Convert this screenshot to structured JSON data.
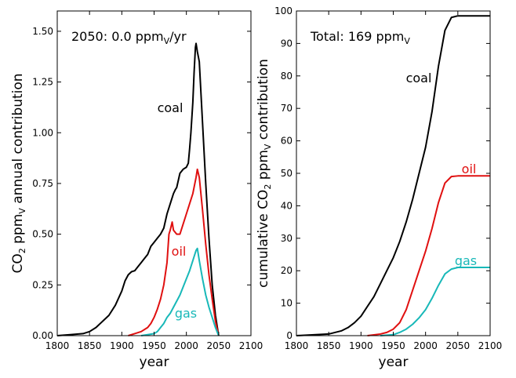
{
  "chart_data": [
    {
      "type": "line",
      "title": "",
      "xlabel": "year",
      "ylabel": "CO2 ppmV annual contribution",
      "ylabel_parts": {
        "pre": "CO",
        "sub1": "2",
        "mid": " ppm",
        "sub2": "V",
        "post": " annual contribution"
      },
      "xlim": [
        1800,
        2100
      ],
      "ylim": [
        0,
        1.6
      ],
      "xticks": [
        "1800",
        "1850",
        "1900",
        "1950",
        "2000",
        "2050",
        "2100"
      ],
      "yticks": [
        "0.00",
        "0.25",
        "0.50",
        "0.75",
        "1.00",
        "1.25",
        "1.50"
      ],
      "annotation": "2050: 0.0 ppmV/yr",
      "annotation_parts": {
        "pre": "2050: 0.0 ppm",
        "sub": "V",
        "post": "/yr"
      },
      "grid": false,
      "series": [
        {
          "name": "coal",
          "color": "#000000",
          "x": [
            1800,
            1820,
            1840,
            1850,
            1860,
            1870,
            1880,
            1890,
            1900,
            1905,
            1910,
            1915,
            1920,
            1925,
            1930,
            1935,
            1940,
            1945,
            1950,
            1955,
            1960,
            1965,
            1970,
            1975,
            1980,
            1983,
            1985,
            1990,
            1995,
            2000,
            2003,
            2005,
            2007,
            2010,
            2012,
            2014,
            2015,
            2017,
            2020,
            2025,
            2030,
            2035,
            2040,
            2045,
            2050
          ],
          "y": [
            0.0,
            0.005,
            0.01,
            0.02,
            0.04,
            0.07,
            0.1,
            0.15,
            0.22,
            0.27,
            0.3,
            0.315,
            0.32,
            0.34,
            0.36,
            0.38,
            0.4,
            0.44,
            0.46,
            0.48,
            0.5,
            0.53,
            0.6,
            0.65,
            0.7,
            0.72,
            0.73,
            0.8,
            0.82,
            0.83,
            0.85,
            0.92,
            1.0,
            1.15,
            1.3,
            1.42,
            1.44,
            1.4,
            1.35,
            1.05,
            0.75,
            0.48,
            0.25,
            0.1,
            0.0
          ]
        },
        {
          "name": "oil",
          "color": "#e01010",
          "x": [
            1910,
            1920,
            1930,
            1940,
            1945,
            1950,
            1955,
            1960,
            1965,
            1970,
            1973,
            1975,
            1978,
            1980,
            1985,
            1990,
            1995,
            2000,
            2005,
            2010,
            2015,
            2017,
            2020,
            2025,
            2030,
            2035,
            2040,
            2045,
            2050
          ],
          "y": [
            0.0,
            0.01,
            0.02,
            0.04,
            0.06,
            0.09,
            0.13,
            0.18,
            0.25,
            0.36,
            0.5,
            0.52,
            0.56,
            0.52,
            0.5,
            0.5,
            0.55,
            0.6,
            0.65,
            0.7,
            0.78,
            0.82,
            0.78,
            0.62,
            0.45,
            0.3,
            0.18,
            0.07,
            0.0
          ]
        },
        {
          "name": "gas",
          "color": "#18b8b8",
          "x": [
            1930,
            1940,
            1950,
            1955,
            1960,
            1965,
            1970,
            1975,
            1980,
            1985,
            1990,
            1995,
            2000,
            2005,
            2010,
            2015,
            2017,
            2020,
            2025,
            2030,
            2035,
            2040,
            2045,
            2050
          ],
          "y": [
            0.0,
            0.005,
            0.01,
            0.02,
            0.04,
            0.06,
            0.09,
            0.11,
            0.14,
            0.17,
            0.2,
            0.24,
            0.28,
            0.32,
            0.37,
            0.42,
            0.43,
            0.37,
            0.28,
            0.2,
            0.14,
            0.09,
            0.04,
            0.0
          ]
        }
      ]
    },
    {
      "type": "line",
      "title": "",
      "xlabel": "year",
      "ylabel": "cumulative CO2 ppmV contribution",
      "ylabel_parts": {
        "pre": "cumulative CO",
        "sub1": "2",
        "mid": " ppm",
        "sub2": "V",
        "post": " contribution"
      },
      "xlim": [
        1800,
        2100
      ],
      "ylim": [
        0,
        100
      ],
      "xticks": [
        "1800",
        "1850",
        "1900",
        "1950",
        "2000",
        "2050",
        "2100"
      ],
      "yticks": [
        "0",
        "10",
        "20",
        "30",
        "40",
        "50",
        "60",
        "70",
        "80",
        "90",
        "100"
      ],
      "annotation": "Total: 169 ppmV",
      "annotation_parts": {
        "pre": "Total: 169 ppm",
        "sub": "V",
        "post": ""
      },
      "grid": false,
      "series": [
        {
          "name": "coal",
          "color": "#000000",
          "x": [
            1800,
            1850,
            1870,
            1880,
            1890,
            1900,
            1910,
            1920,
            1930,
            1940,
            1950,
            1960,
            1970,
            1980,
            1990,
            2000,
            2010,
            2020,
            2030,
            2040,
            2050,
            2100
          ],
          "y": [
            0,
            0.5,
            1.5,
            2.5,
            4,
            6,
            9,
            12,
            16,
            20,
            24,
            29,
            35,
            42,
            50,
            58,
            69,
            83,
            94,
            98,
            98.5,
            98.5
          ]
        },
        {
          "name": "oil",
          "color": "#e01010",
          "x": [
            1910,
            1930,
            1940,
            1950,
            1960,
            1970,
            1980,
            1990,
            2000,
            2010,
            2020,
            2030,
            2040,
            2050,
            2100
          ],
          "y": [
            0,
            0.5,
            1,
            2,
            4,
            8,
            14,
            20,
            26,
            33,
            41,
            47,
            49,
            49.2,
            49.2
          ]
        },
        {
          "name": "gas",
          "color": "#18b8b8",
          "x": [
            1930,
            1950,
            1960,
            1970,
            1980,
            1990,
            2000,
            2010,
            2020,
            2030,
            2040,
            2050,
            2100
          ],
          "y": [
            0,
            0.3,
            1,
            2,
            3.5,
            5.5,
            8,
            11.5,
            15.5,
            19,
            20.5,
            21,
            21
          ]
        }
      ]
    }
  ]
}
